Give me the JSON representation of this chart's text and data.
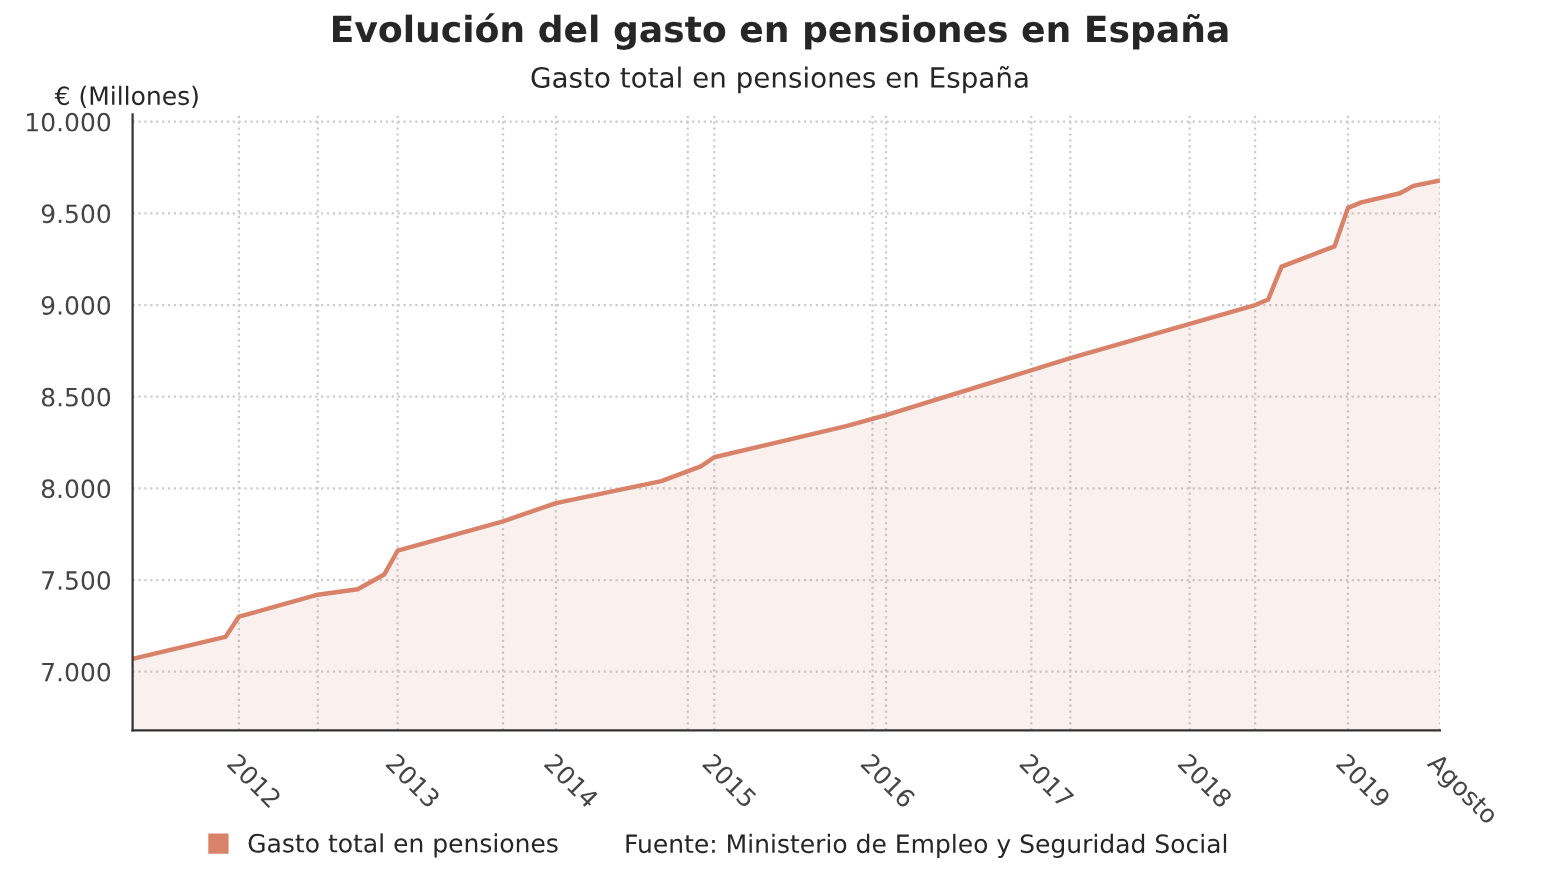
{
  "chart_data": {
    "type": "area",
    "title": "Evolución del gasto en pensiones en España",
    "subtitle": "Gasto total en pensiones en España",
    "ylabel": "€ (Millones)",
    "x": [
      "2011-05",
      "2011-12",
      "2012-01",
      "2012-07",
      "2012-10",
      "2012-12",
      "2013-01",
      "2013-09",
      "2014-01",
      "2014-09",
      "2014-12",
      "2015-01",
      "2015-11",
      "2016-02",
      "2017-04",
      "2018-06",
      "2018-07",
      "2018-08",
      "2018-12",
      "2019-01",
      "2019-02",
      "2019-05",
      "2019-06",
      "2019-08"
    ],
    "series": [
      {
        "name": "Gasto total en pensiones",
        "color": "#d9826a",
        "values": [
          7070,
          7190,
          7300,
          7420,
          7450,
          7530,
          7660,
          7820,
          7920,
          8040,
          8120,
          8170,
          8340,
          8400,
          8710,
          9000,
          9030,
          9210,
          9320,
          9530,
          9560,
          9610,
          9650,
          9680
        ]
      }
    ],
    "xlim": [
      "2011-05",
      "2019-08"
    ],
    "xticks": [
      {
        "value": "2012-01",
        "label": "2012"
      },
      {
        "value": "2012-07",
        "label": null
      },
      {
        "value": "2013-01",
        "label": "2013"
      },
      {
        "value": "2013-09",
        "label": null
      },
      {
        "value": "2014-01",
        "label": "2014"
      },
      {
        "value": "2014-11",
        "label": null
      },
      {
        "value": "2015-01",
        "label": "2015"
      },
      {
        "value": "2016-01",
        "label": "2016"
      },
      {
        "value": "2016-02",
        "label": null
      },
      {
        "value": "2017-01",
        "label": "2017"
      },
      {
        "value": "2017-04",
        "label": null
      },
      {
        "value": "2018-01",
        "label": "2018"
      },
      {
        "value": "2018-06",
        "label": null
      },
      {
        "value": "2019-01",
        "label": "2019"
      },
      {
        "value": "2019-08",
        "label": "Agosto"
      }
    ],
    "ylim": [
      6680,
      10040
    ],
    "yticks": [
      {
        "value": 7000,
        "label": "7.000"
      },
      {
        "value": 7500,
        "label": "7.500"
      },
      {
        "value": 8000,
        "label": "8.000"
      },
      {
        "value": 8500,
        "label": "8.500"
      },
      {
        "value": 9000,
        "label": "9.000"
      },
      {
        "value": 9500,
        "label": "9.500"
      },
      {
        "value": 10000,
        "label": "10.000"
      }
    ],
    "grid": true,
    "legend": "bottom left",
    "annotations": [
      "Fuente: Ministerio de Empleo y Seguridad Social"
    ]
  }
}
